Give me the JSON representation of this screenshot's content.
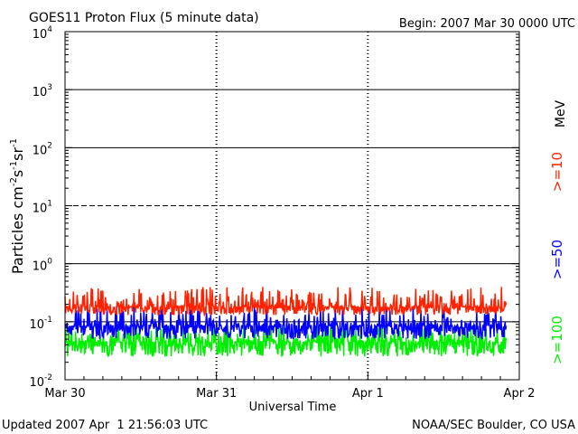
{
  "chart_data": {
    "type": "line",
    "title": "GOES11 Proton Flux (5 minute data)",
    "begin_label": "Begin: 2007 Mar 30 0000 UTC",
    "xlabel": "Universal Time",
    "ylabel": {
      "base": "Particles cm",
      "exp1": "-2",
      "mid1": "s",
      "exp2": "-1",
      "mid2": "sr",
      "exp3": "-1"
    },
    "unit_label": "MeV",
    "x_ticks": [
      "Mar 30",
      "Mar 31",
      "Apr 1",
      "Apr 2"
    ],
    "x_range_days": [
      0,
      3
    ],
    "y_ticks": [
      {
        "base": "10",
        "exp": "-2",
        "value": 0.01
      },
      {
        "base": "10",
        "exp": "-1",
        "value": 0.1
      },
      {
        "base": "10",
        "exp": "0",
        "value": 1
      },
      {
        "base": "10",
        "exp": "1",
        "value": 10
      },
      {
        "base": "10",
        "exp": "2",
        "value": 100
      },
      {
        "base": "10",
        "exp": "3",
        "value": 1000
      },
      {
        "base": "10",
        "exp": "4",
        "value": 10000
      }
    ],
    "ylim": [
      0.01,
      10000
    ],
    "y_scale": "log",
    "series": [
      {
        "name": ">=10",
        "color": "#ff2200",
        "baseline": 0.18,
        "low": 0.13,
        "high": 0.4
      },
      {
        "name": ">=50",
        "color": "#0000ff",
        "baseline": 0.085,
        "low": 0.05,
        "high": 0.19
      },
      {
        "name": ">=100",
        "color": "#00ee00",
        "baseline": 0.045,
        "low": 0.025,
        "high": 0.09
      }
    ]
  },
  "footer": {
    "updated": "Updated 2007 Apr  1 21:56:03 UTC",
    "credit": "NOAA/SEC Boulder, CO USA"
  }
}
